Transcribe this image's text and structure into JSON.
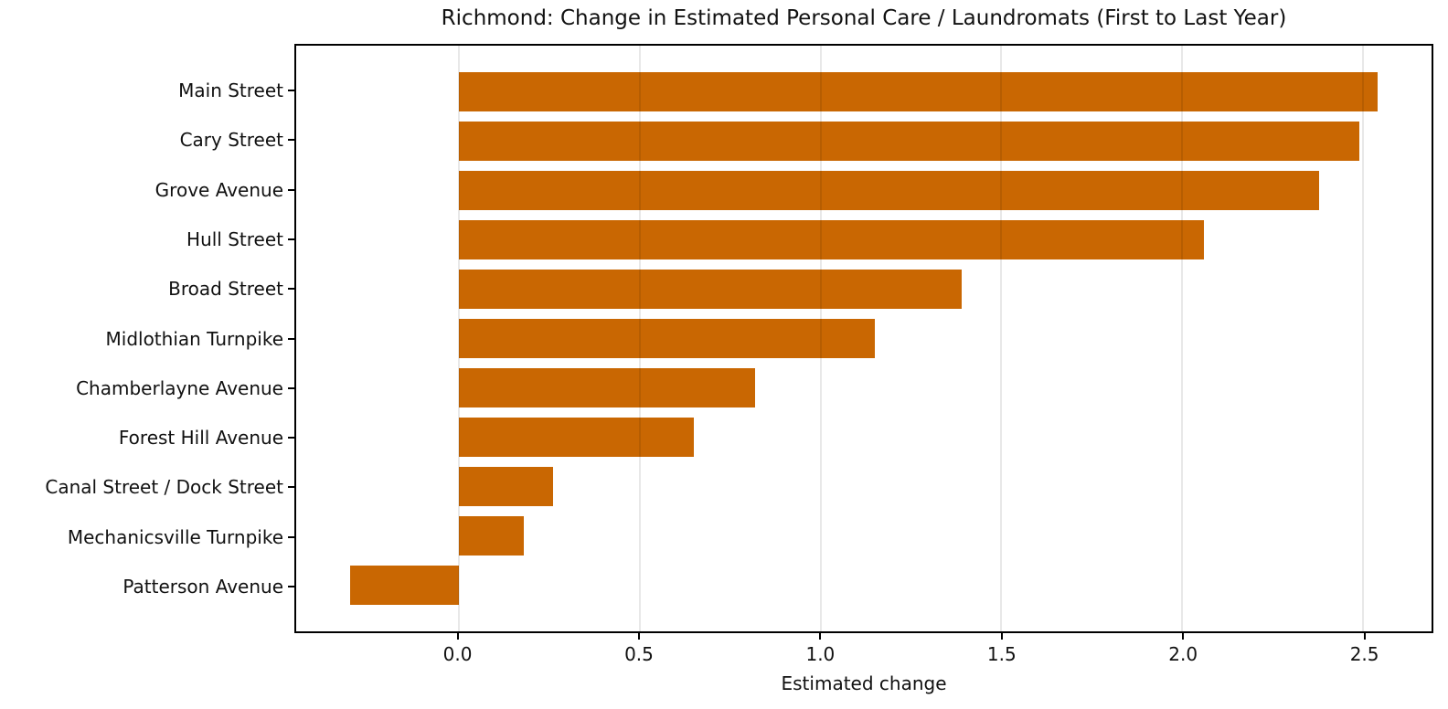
{
  "chart_data": {
    "type": "bar",
    "orientation": "horizontal",
    "title": "Richmond: Change in Estimated Personal Care / Laundromats (First to Last Year)",
    "xlabel": "Estimated change",
    "ylabel": "",
    "categories": [
      "Main Street",
      "Cary Street",
      "Grove Avenue",
      "Hull Street",
      "Broad Street",
      "Midlothian Turnpike",
      "Chamberlayne Avenue",
      "Forest Hill Avenue",
      "Canal Street / Dock Street",
      "Mechanicsville Turnpike",
      "Patterson Avenue"
    ],
    "values": [
      2.54,
      2.49,
      2.38,
      2.06,
      1.39,
      1.15,
      0.82,
      0.65,
      0.26,
      0.18,
      -0.3
    ],
    "xlim": [
      -0.45,
      2.69
    ],
    "xticks": [
      0,
      0.5,
      1,
      1.5,
      2,
      2.5
    ],
    "xtick_labels": [
      "0.0",
      "0.5",
      "1.0",
      "1.5",
      "2.0",
      "2.5"
    ],
    "grid": "vertical-on-top",
    "legend": "none",
    "bar_color": "#c96702",
    "grid_color": "#e8e8e8",
    "spine_color": "#000000",
    "background_color": "#ffffff"
  }
}
